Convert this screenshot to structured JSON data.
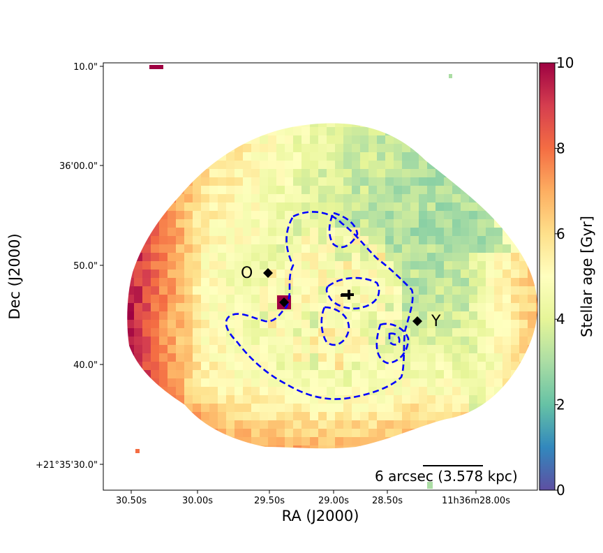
{
  "chart_data": {
    "type": "heatmap",
    "xlabel": "RA (J2000)",
    "ylabel": "Dec (J2000)",
    "x_ticks": [
      "30.50s",
      "30.00s",
      "29.50s",
      "29.00s",
      "28.50s",
      "11h36m28.00s"
    ],
    "y_ticks": [
      "10.0\"",
      "36'00.0\"",
      "50.0\"",
      "40.0\"",
      "+21°35'30.0\""
    ],
    "colorbar": {
      "label": "Stellar age [Gyr]",
      "min": 0,
      "max": 10,
      "ticks": [
        0,
        2,
        4,
        6,
        8,
        10
      ],
      "colormap": "Spectral_r"
    },
    "markers": [
      {
        "label": "O",
        "shape": "diamond",
        "color": "#000000"
      },
      {
        "label": "Y",
        "shape": "diamond",
        "color": "#000000"
      },
      {
        "label": "",
        "shape": "plus",
        "color": "#000000"
      }
    ],
    "contour": {
      "color": "#0000ff",
      "style": "dashed"
    },
    "scale_bar": {
      "text": "6 arcsec (3.578 kpc)"
    },
    "map_regions": [
      {
        "age": 9.8
      },
      {
        "age": 9.6
      },
      {
        "age": 8.8
      },
      {
        "age": 8.4
      },
      {
        "age": 8.0
      },
      {
        "age": 7.6
      },
      {
        "age": 7.2
      },
      {
        "age": 6.6
      },
      {
        "age": 6.0
      },
      {
        "age": 5.4
      },
      {
        "age": 4.8
      },
      {
        "age": 4.2
      },
      {
        "age": 3.6
      },
      {
        "age": 3.0
      },
      {
        "age": 2.6
      },
      {
        "age": 2.2
      },
      {
        "age": 1.8
      },
      {
        "age": 1.5
      },
      {
        "age": 5.0
      },
      {
        "age": 4.5
      }
    ]
  }
}
